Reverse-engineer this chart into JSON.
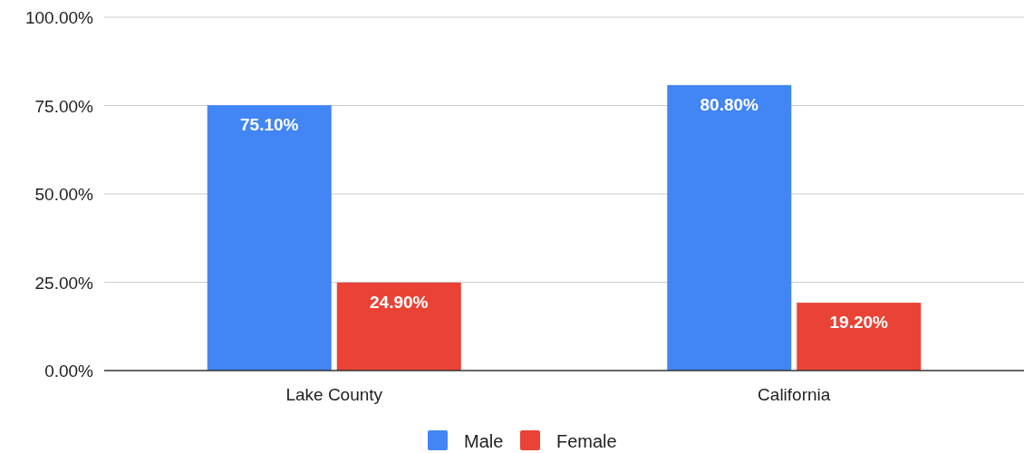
{
  "chart_data": {
    "type": "bar",
    "categories": [
      "Lake County",
      "California"
    ],
    "series": [
      {
        "name": "Male",
        "color": "#4285f4",
        "values": [
          75.1,
          80.8
        ],
        "value_labels": [
          "75.10%",
          "80.80%"
        ]
      },
      {
        "name": "Female",
        "color": "#ea4335",
        "values": [
          24.9,
          19.2
        ],
        "value_labels": [
          "24.90%",
          "19.20%"
        ]
      }
    ],
    "ylim": [
      0,
      100
    ],
    "yticks": [
      {
        "value": 0,
        "label": "0.00%"
      },
      {
        "value": 25,
        "label": "25.00%"
      },
      {
        "value": 50,
        "label": "50.00%"
      },
      {
        "value": 75,
        "label": "75.00%"
      },
      {
        "value": 100,
        "label": "100.00%"
      }
    ],
    "grid": "y",
    "legend": "bottom"
  }
}
